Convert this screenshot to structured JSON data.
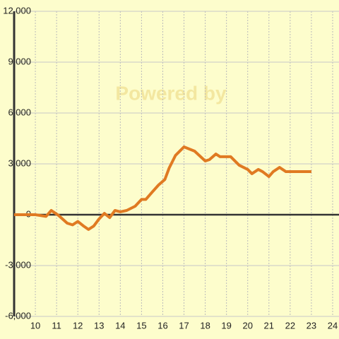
{
  "chart_data": {
    "type": "line",
    "watermark": "Powered by",
    "x": [
      9.0,
      10.0,
      10.5,
      10.75,
      11.1,
      11.5,
      11.75,
      12.0,
      12.25,
      12.5,
      12.75,
      13.0,
      13.25,
      13.5,
      13.75,
      14.0,
      14.3,
      14.7,
      15.0,
      15.2,
      15.5,
      15.8,
      16.1,
      16.3,
      16.6,
      17.0,
      17.5,
      18.0,
      18.2,
      18.5,
      18.7,
      19.2,
      19.4,
      19.6,
      20.0,
      20.2,
      20.5,
      20.7,
      21.0,
      21.2,
      21.5,
      21.8,
      23.0
    ],
    "series": [
      {
        "color": "#e07a22",
        "values": [
          0,
          0,
          -100,
          250,
          -50,
          -500,
          -600,
          -400,
          -650,
          -870,
          -670,
          -250,
          80,
          -170,
          250,
          170,
          250,
          500,
          900,
          900,
          1330,
          1750,
          2080,
          2750,
          3500,
          4000,
          3750,
          3170,
          3250,
          3580,
          3420,
          3420,
          3170,
          2920,
          2670,
          2420,
          2670,
          2540,
          2250,
          2540,
          2790,
          2540,
          2540
        ]
      }
    ],
    "xlim": [
      9,
      24.3
    ],
    "xticks": [
      10,
      11,
      12,
      13,
      14,
      15,
      16,
      17,
      18,
      19,
      20,
      21,
      22,
      23,
      24
    ],
    "ylim": [
      -6000,
      12000
    ],
    "yticks": [
      {
        "value": -6000,
        "label": "-6,000"
      },
      {
        "value": -3000,
        "label": "-3,000"
      },
      0,
      {
        "value": 3000,
        "label": "3,000"
      },
      {
        "value": 6000,
        "label": "6,000"
      },
      {
        "value": 9000,
        "label": "9,000"
      },
      {
        "value": 12000,
        "label": "12,000"
      }
    ],
    "grid": true
  }
}
